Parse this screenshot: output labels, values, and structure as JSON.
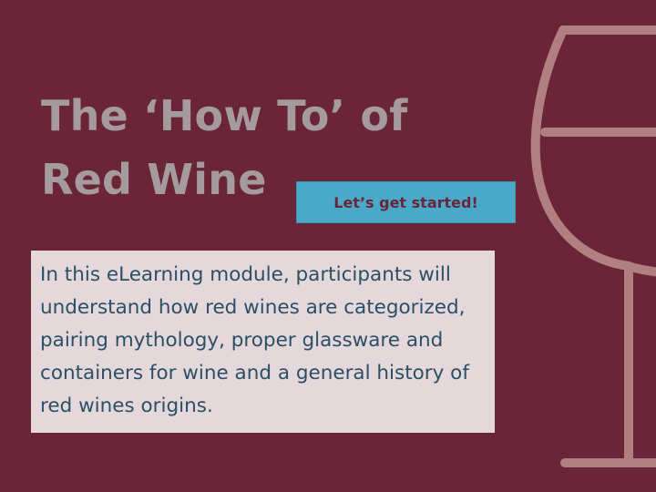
{
  "slide": {
    "title_line1": "The ‘How To’ of",
    "title_line2": "Red Wine",
    "start_button_label": "Let’s get started!",
    "description": "In this eLearning module, participants will understand how red wines are categorized, pairing mythology, proper glassware and containers for wine and a general history of red wines origins."
  },
  "colors": {
    "background": "#6b2538",
    "title": "#a59b9e",
    "button_bg": "#4aa9c9",
    "button_text": "#6b2538",
    "description_bg": "#e5d8da",
    "description_text": "#2a4f66",
    "wine_glass": "#b27f80"
  },
  "icons": {
    "decoration": "wine-glass-icon"
  }
}
